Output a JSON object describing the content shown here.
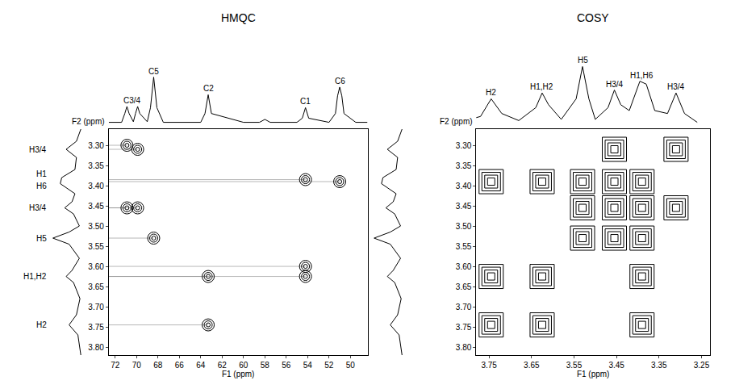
{
  "chart_data": [
    {
      "type": "scatter",
      "title": "HMQC",
      "x_label": "F1 (ppm)",
      "y_label": "F2 (ppm)",
      "marker": "circle",
      "color": "#000000",
      "grid": false,
      "xlim": [
        72.6,
        48.4
      ],
      "xticks": [
        72,
        70,
        68,
        66,
        64,
        62,
        60,
        58,
        56,
        54,
        52,
        50
      ],
      "ylim": [
        3.82,
        3.26
      ],
      "yticks": [
        {
          "value": 3.3,
          "label": "3.30"
        },
        3.35,
        {
          "value": 3.4,
          "label": "3.40"
        },
        3.45,
        {
          "value": 3.5,
          "label": "3.50"
        },
        3.55,
        {
          "value": 3.6,
          "label": "3.60"
        },
        3.65,
        {
          "value": 3.7,
          "label": "3.70"
        },
        3.75,
        {
          "value": 3.8,
          "label": "3.80"
        }
      ],
      "x": [
        70.9,
        69.9,
        70.9,
        69.9,
        68.4,
        63.3,
        63.3,
        54.2,
        54.2,
        54.2,
        51.0
      ],
      "values": [
        3.3,
        3.31,
        3.455,
        3.455,
        3.53,
        3.625,
        3.745,
        3.385,
        3.6,
        3.625,
        3.39
      ],
      "projection_top": {
        "x": [
          72.6,
          71.4,
          71.1,
          70.9,
          70.7,
          70.3,
          70.1,
          69.9,
          69.7,
          69.0,
          68.7,
          68.4,
          68.1,
          67.5,
          64.0,
          63.6,
          63.3,
          63.0,
          60.0,
          58.5,
          58.0,
          57.5,
          55.0,
          54.5,
          54.2,
          53.9,
          52.0,
          51.4,
          51.2,
          51.0,
          50.8,
          50.6,
          49.5,
          48.4
        ],
        "values": [
          0.05,
          0.05,
          0.2,
          0.32,
          0.2,
          0.06,
          0.2,
          0.32,
          0.2,
          0.06,
          0.3,
          0.82,
          0.3,
          0.05,
          0.05,
          0.2,
          0.52,
          0.2,
          0.05,
          0.05,
          0.1,
          0.05,
          0.05,
          0.12,
          0.3,
          0.12,
          0.05,
          0.2,
          0.5,
          0.65,
          0.5,
          0.2,
          0.05,
          0.05
        ],
        "ylim": [
          0,
          1.1
        ],
        "labels": [
          {
            "text": "C3/4",
            "x": 70.4
          },
          {
            "text": "C5",
            "x": 68.4
          },
          {
            "text": "C2",
            "x": 63.3
          },
          {
            "text": "C1",
            "x": 54.2
          },
          {
            "text": "C6",
            "x": 51.0
          }
        ]
      },
      "projection_side": {
        "y": [
          3.26,
          3.29,
          3.31,
          3.33,
          3.36,
          3.38,
          3.395,
          3.42,
          3.44,
          3.455,
          3.47,
          3.5,
          3.515,
          3.53,
          3.545,
          3.58,
          3.61,
          3.625,
          3.64,
          3.68,
          3.72,
          3.745,
          3.77,
          3.82
        ],
        "values": [
          0.05,
          0.2,
          0.55,
          0.2,
          0.25,
          0.7,
          0.75,
          0.25,
          0.35,
          0.6,
          0.3,
          0.1,
          0.45,
          1.0,
          0.45,
          0.1,
          0.35,
          0.55,
          0.3,
          0.08,
          0.2,
          0.45,
          0.15,
          0.05
        ],
        "xlim": [
          1.1,
          0
        ],
        "labels": [
          {
            "text": "H3/4",
            "y": 3.31
          },
          {
            "text": "H1",
            "y": 3.37
          },
          {
            "text": "H6",
            "y": 3.4
          },
          {
            "text": "H3/4",
            "y": 3.455
          },
          {
            "text": "H5",
            "y": 3.53
          },
          {
            "text": "H1,H2",
            "y": 3.625
          },
          {
            "text": "H2",
            "y": 3.745
          }
        ]
      }
    },
    {
      "type": "scatter",
      "title": "COSY",
      "x_label": "F1 (ppm)",
      "y_label": "F2 (ppm)",
      "marker": "square",
      "color": "#000000",
      "grid": false,
      "xlim": [
        3.78,
        3.23
      ],
      "xticks": [
        3.75,
        3.65,
        3.55,
        3.45,
        3.35,
        3.25
      ],
      "ylim": [
        3.82,
        3.26
      ],
      "yticks": [
        {
          "value": 3.3,
          "label": "3.30"
        },
        3.35,
        {
          "value": 3.4,
          "label": "3.40"
        },
        3.45,
        {
          "value": 3.5,
          "label": "3.50"
        },
        3.55,
        {
          "value": 3.6,
          "label": "3.60"
        },
        3.65,
        {
          "value": 3.7,
          "label": "3.70"
        },
        3.75,
        {
          "value": 3.8,
          "label": "3.80"
        }
      ],
      "x": [
        3.745,
        3.625,
        3.53,
        3.455,
        3.39,
        3.31,
        3.745,
        3.625,
        3.625,
        3.39,
        3.53,
        3.455,
        3.455,
        3.31,
        3.53,
        3.39,
        3.745,
        3.39,
        3.39,
        3.455
      ],
      "values": [
        3.745,
        3.625,
        3.53,
        3.455,
        3.39,
        3.31,
        3.625,
        3.745,
        3.39,
        3.625,
        3.455,
        3.53,
        3.31,
        3.455,
        3.39,
        3.53,
        3.39,
        3.745,
        3.455,
        3.39
      ],
      "projection_top": {
        "x": [
          3.82,
          3.77,
          3.745,
          3.72,
          3.68,
          3.64,
          3.625,
          3.61,
          3.58,
          3.545,
          3.53,
          3.515,
          3.5,
          3.47,
          3.455,
          3.44,
          3.42,
          3.395,
          3.38,
          3.36,
          3.33,
          3.31,
          3.29,
          3.26
        ],
        "values": [
          0.05,
          0.15,
          0.45,
          0.2,
          0.08,
          0.3,
          0.55,
          0.35,
          0.1,
          0.45,
          1.0,
          0.45,
          0.1,
          0.3,
          0.6,
          0.35,
          0.25,
          0.75,
          0.7,
          0.25,
          0.2,
          0.55,
          0.2,
          0.05
        ],
        "ylim": [
          0,
          1.1
        ],
        "labels": [
          {
            "text": "H2",
            "x": 3.745
          },
          {
            "text": "H1,H2",
            "x": 3.625
          },
          {
            "text": "H5",
            "x": 3.53
          },
          {
            "text": "H3/4",
            "x": 3.455
          },
          {
            "text": "H1,H6",
            "x": 3.39
          },
          {
            "text": "H3/4",
            "x": 3.31
          }
        ]
      }
    }
  ]
}
